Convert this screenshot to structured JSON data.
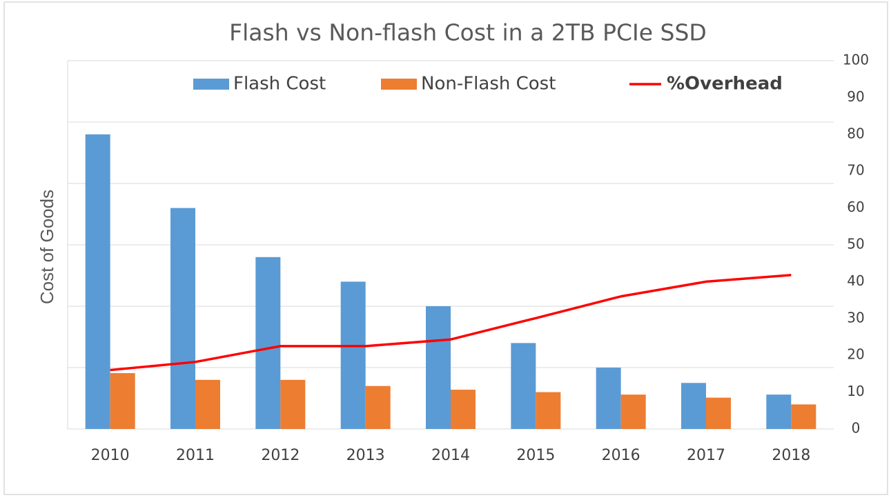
{
  "chart_data": {
    "type": "bar",
    "title": "Flash vs Non-flash Cost in a 2TB PCIe SSD",
    "y_label": "Cost of Goods",
    "categories": [
      "2010",
      "2011",
      "2012",
      "2013",
      "2014",
      "2015",
      "2016",
      "2017",
      "2018"
    ],
    "series": [
      {
        "name": "Flash Cost",
        "color": "#5b9bd5",
        "values": [
          4.8,
          3.6,
          2.8,
          2.4,
          2.0,
          1.4,
          1.0,
          0.75,
          0.56
        ]
      },
      {
        "name": "Non-Flash Cost",
        "color": "#ed7d31",
        "values": [
          0.91,
          0.8,
          0.8,
          0.7,
          0.64,
          0.6,
          0.56,
          0.51,
          0.4
        ]
      },
      {
        "name": "%Overhead",
        "color": "#ff0000",
        "type": "line",
        "axis": "y2",
        "values": [
          16,
          18.2,
          22.5,
          22.5,
          24.3,
          30.1,
          36,
          40,
          41.8
        ]
      }
    ],
    "ylim": [
      0,
      6
    ],
    "yticks": [
      0,
      1,
      2,
      3,
      4,
      5,
      6
    ],
    "y2lim": [
      0,
      100
    ],
    "y2ticks": [
      0,
      10,
      20,
      30,
      40,
      50,
      60,
      70,
      80,
      90,
      100
    ],
    "grid": true,
    "legend": "top"
  }
}
